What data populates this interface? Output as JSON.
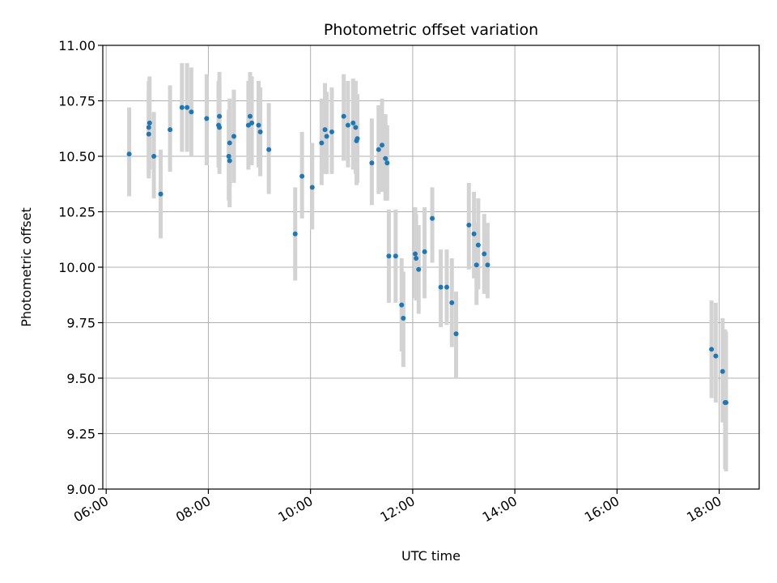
{
  "chart_data": {
    "type": "scatter",
    "title": "Photometric offset variation",
    "xlabel": "UTC time",
    "ylabel": "Photometric offset",
    "xlim": [
      "05:56",
      "18:47"
    ],
    "ylim": [
      9.0,
      11.0
    ],
    "xticks": [
      "06:00",
      "08:00",
      "10:00",
      "12:00",
      "14:00",
      "16:00",
      "18:00"
    ],
    "yticks": [
      "9.00",
      "9.25",
      "9.50",
      "9.75",
      "10.00",
      "10.25",
      "10.50",
      "10.75",
      "11.00"
    ],
    "grid": true,
    "legend": "none",
    "marker_color": "#1f77b4",
    "errorbar_color": "#d3d3d3",
    "series": [
      {
        "x": [
          "06:27",
          "06:50",
          "06:50",
          "06:51",
          "06:56",
          "07:04",
          "07:15",
          "07:29",
          "07:35",
          "07:40",
          "07:58",
          "08:12",
          "08:13",
          "08:13",
          "08:24",
          "08:25",
          "08:25",
          "08:30",
          "08:47",
          "08:49",
          "08:51",
          "08:59",
          "09:01",
          "09:11",
          "09:42",
          "09:50",
          "10:02",
          "10:13",
          "10:17",
          "10:19",
          "10:25",
          "10:39",
          "10:44",
          "10:50",
          "10:53",
          "10:54",
          "10:55",
          "11:12",
          "11:20",
          "11:24",
          "11:28",
          "11:30",
          "11:32",
          "11:40",
          "11:47",
          "11:49",
          "12:03",
          "12:04",
          "12:07",
          "12:14",
          "12:23",
          "12:33",
          "12:40",
          "12:46",
          "12:51",
          "13:06",
          "13:12",
          "13:15",
          "13:17",
          "13:24",
          "13:28",
          "17:51",
          "17:56",
          "18:04",
          "18:07",
          "18:08"
        ],
        "y": [
          10.51,
          10.63,
          10.6,
          10.65,
          10.5,
          10.33,
          10.62,
          10.72,
          10.72,
          10.7,
          10.67,
          10.64,
          10.68,
          10.63,
          10.5,
          10.48,
          10.56,
          10.59,
          10.64,
          10.68,
          10.65,
          10.64,
          10.61,
          10.53,
          10.15,
          10.41,
          10.36,
          10.56,
          10.62,
          10.59,
          10.61,
          10.68,
          10.64,
          10.65,
          10.63,
          10.57,
          10.58,
          10.47,
          10.53,
          10.55,
          10.49,
          10.47,
          10.05,
          10.05,
          9.83,
          9.77,
          10.06,
          10.04,
          9.99,
          10.07,
          10.22,
          9.91,
          9.91,
          9.84,
          9.7,
          10.19,
          10.15,
          10.01,
          10.1,
          10.06,
          10.01,
          9.63,
          9.6,
          9.53,
          9.39,
          9.39
        ],
        "err_low": [
          10.32,
          10.4,
          10.42,
          10.44,
          10.31,
          10.13,
          10.43,
          10.52,
          10.52,
          10.5,
          10.46,
          10.45,
          10.48,
          10.42,
          10.3,
          10.27,
          10.36,
          10.38,
          10.44,
          10.47,
          10.46,
          10.45,
          10.41,
          10.33,
          9.94,
          10.22,
          10.17,
          10.37,
          10.42,
          10.42,
          10.42,
          10.48,
          10.45,
          10.44,
          10.42,
          10.37,
          10.38,
          10.28,
          10.33,
          10.34,
          10.3,
          10.3,
          9.84,
          9.84,
          9.62,
          9.55,
          9.86,
          9.85,
          9.79,
          9.86,
          10.02,
          9.73,
          9.74,
          9.64,
          9.5,
          9.99,
          9.95,
          9.83,
          9.9,
          9.88,
          9.86,
          9.41,
          9.39,
          9.3,
          9.09,
          9.08
        ],
        "err_high": [
          10.72,
          10.84,
          10.8,
          10.86,
          10.7,
          10.53,
          10.82,
          10.92,
          10.92,
          10.9,
          10.87,
          10.84,
          10.88,
          10.84,
          10.71,
          10.69,
          10.76,
          10.8,
          10.84,
          10.88,
          10.86,
          10.84,
          10.81,
          10.74,
          10.36,
          10.61,
          10.56,
          10.76,
          10.83,
          10.79,
          10.81,
          10.87,
          10.84,
          10.85,
          10.84,
          10.77,
          10.78,
          10.67,
          10.73,
          10.76,
          10.69,
          10.64,
          10.26,
          10.26,
          10.04,
          9.98,
          10.27,
          10.24,
          10.19,
          10.27,
          10.36,
          10.08,
          10.08,
          10.04,
          9.89,
          10.38,
          10.34,
          10.2,
          10.31,
          10.24,
          10.2,
          9.85,
          9.84,
          9.77,
          9.72,
          9.71
        ]
      }
    ]
  }
}
